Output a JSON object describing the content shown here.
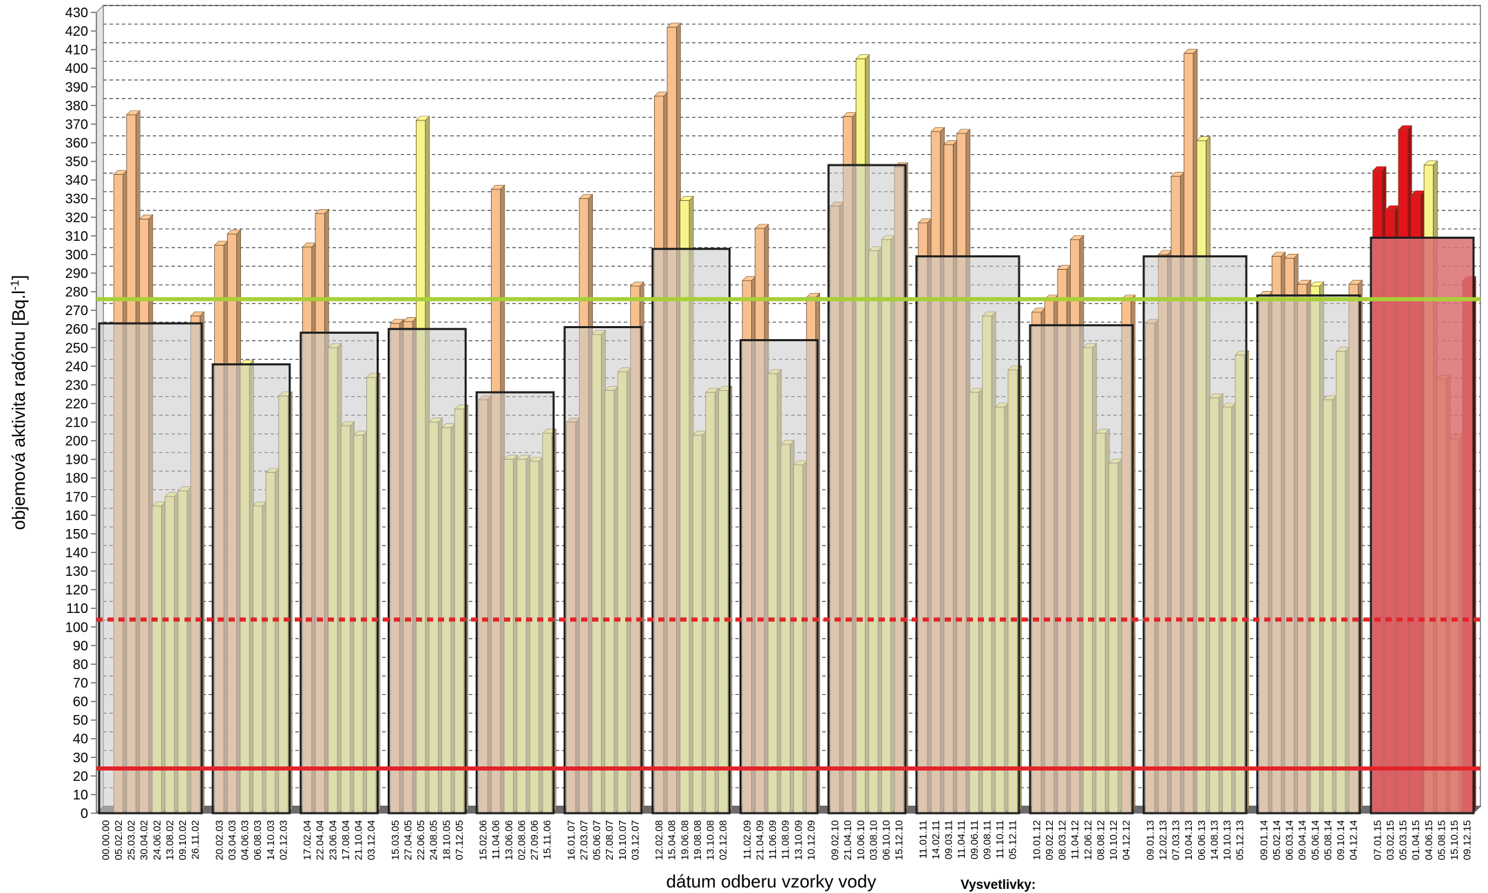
{
  "chart_data": {
    "type": "bar",
    "ylabel": "objemová aktivita radónu [Bq.l-1]",
    "ylabel_main": "objemová aktivita radónu [Bq.l",
    "ylabel_sup": "-1",
    "ylabel_end": "]",
    "xlabel": "dátum odberu vzorky vody",
    "legend_title": "Vysvetlivky:",
    "ylim": [
      0,
      430
    ],
    "ytick_step": 10,
    "grid": true,
    "reference_lines": [
      {
        "value": 276,
        "color": "#a9cf38",
        "style": "solid"
      },
      {
        "value": 104,
        "color": "#e2242a",
        "style": "dotted"
      },
      {
        "value": 24,
        "color": "#e2242a",
        "style": "solid"
      }
    ],
    "colors": {
      "orange": "#f7c08e",
      "yellow": "#f6f58c",
      "red": "#e2141b",
      "annual_fill": "#c9c9c9",
      "annual_fill_last": "#d96f72",
      "refline_green": "#a9cf38",
      "refline_red": "#e2242a"
    },
    "groups": [
      {
        "annual_mean": 263,
        "samples": [
          {
            "date": "00.00.00",
            "value": 0,
            "color": "orange"
          },
          {
            "date": "05.02.02",
            "value": 343,
            "color": "orange"
          },
          {
            "date": "25.03.02",
            "value": 375,
            "color": "orange"
          },
          {
            "date": "30.04.02",
            "value": 319,
            "color": "orange"
          },
          {
            "date": "24.06.02",
            "value": 165,
            "color": "yellow"
          },
          {
            "date": "13.08.02",
            "value": 170,
            "color": "yellow"
          },
          {
            "date": "09.10.02",
            "value": 173,
            "color": "yellow"
          },
          {
            "date": "26.11.02",
            "value": 267,
            "color": "orange"
          }
        ]
      },
      {
        "annual_mean": 241,
        "samples": [
          {
            "date": "20.02.03",
            "value": 305,
            "color": "orange"
          },
          {
            "date": "03.04.03",
            "value": 311,
            "color": "orange"
          },
          {
            "date": "04.06.03",
            "value": 241,
            "color": "yellow"
          },
          {
            "date": "06.08.03",
            "value": 165,
            "color": "yellow"
          },
          {
            "date": "14.10.03",
            "value": 183,
            "color": "yellow"
          },
          {
            "date": "02.12.03",
            "value": 224,
            "color": "yellow"
          }
        ]
      },
      {
        "annual_mean": 258,
        "samples": [
          {
            "date": "17.02.04",
            "value": 304,
            "color": "orange"
          },
          {
            "date": "22.04.04",
            "value": 322,
            "color": "orange"
          },
          {
            "date": "23.06.04",
            "value": 250,
            "color": "yellow"
          },
          {
            "date": "17.08.04",
            "value": 208,
            "color": "yellow"
          },
          {
            "date": "21.10.04",
            "value": 203,
            "color": "yellow"
          },
          {
            "date": "03.12.04",
            "value": 234,
            "color": "yellow"
          }
        ]
      },
      {
        "annual_mean": 260,
        "samples": [
          {
            "date": "15.03.05",
            "value": 263,
            "color": "orange"
          },
          {
            "date": "27.04.05",
            "value": 264,
            "color": "orange"
          },
          {
            "date": "22.06.05",
            "value": 372,
            "color": "yellow"
          },
          {
            "date": "24.08.05",
            "value": 210,
            "color": "yellow"
          },
          {
            "date": "18.10.05",
            "value": 207,
            "color": "yellow"
          },
          {
            "date": "07.12.05",
            "value": 217,
            "color": "yellow"
          }
        ]
      },
      {
        "annual_mean": 226,
        "samples": [
          {
            "date": "15.02.06",
            "value": 222,
            "color": "orange"
          },
          {
            "date": "11.04.06",
            "value": 335,
            "color": "orange"
          },
          {
            "date": "13.06.06",
            "value": 190,
            "color": "yellow"
          },
          {
            "date": "02.08.06",
            "value": 190,
            "color": "yellow"
          },
          {
            "date": "27.09.06",
            "value": 189,
            "color": "yellow"
          },
          {
            "date": "15.11.06",
            "value": 204,
            "color": "yellow"
          }
        ]
      },
      {
        "annual_mean": 261,
        "samples": [
          {
            "date": "16.01.07",
            "value": 210,
            "color": "orange"
          },
          {
            "date": "27.03.07",
            "value": 330,
            "color": "orange"
          },
          {
            "date": "05.06.07",
            "value": 257,
            "color": "yellow"
          },
          {
            "date": "27.08.07",
            "value": 227,
            "color": "yellow"
          },
          {
            "date": "10.10.07",
            "value": 237,
            "color": "yellow"
          },
          {
            "date": "03.12.07",
            "value": 283,
            "color": "orange"
          }
        ]
      },
      {
        "annual_mean": 303,
        "samples": [
          {
            "date": "12.02.08",
            "value": 385,
            "color": "orange"
          },
          {
            "date": "15.04.08",
            "value": 422,
            "color": "orange"
          },
          {
            "date": "19.06.08",
            "value": 329,
            "color": "yellow"
          },
          {
            "date": "19.08.08",
            "value": 203,
            "color": "yellow"
          },
          {
            "date": "13.10.08",
            "value": 226,
            "color": "yellow"
          },
          {
            "date": "02.12.08",
            "value": 227,
            "color": "yellow"
          }
        ]
      },
      {
        "annual_mean": 254,
        "samples": [
          {
            "date": "11.02.09",
            "value": 286,
            "color": "orange"
          },
          {
            "date": "21.04.09",
            "value": 314,
            "color": "orange"
          },
          {
            "date": "11.06.09",
            "value": 236,
            "color": "yellow"
          },
          {
            "date": "11.08.09",
            "value": 198,
            "color": "yellow"
          },
          {
            "date": "13.10.09",
            "value": 187,
            "color": "yellow"
          },
          {
            "date": "10.12.09",
            "value": 277,
            "color": "orange"
          }
        ]
      },
      {
        "annual_mean": 348,
        "samples": [
          {
            "date": "09.02.10",
            "value": 326,
            "color": "orange"
          },
          {
            "date": "21.04.10",
            "value": 374,
            "color": "orange"
          },
          {
            "date": "10.06.10",
            "value": 405,
            "color": "yellow"
          },
          {
            "date": "03.08.10",
            "value": 302,
            "color": "yellow"
          },
          {
            "date": "06.10.10",
            "value": 308,
            "color": "yellow"
          },
          {
            "date": "15.12.10",
            "value": 347,
            "color": "orange"
          }
        ]
      },
      {
        "annual_mean": 299,
        "samples": [
          {
            "date": "11.01.11",
            "value": 317,
            "color": "orange"
          },
          {
            "date": "14.02.11",
            "value": 366,
            "color": "orange"
          },
          {
            "date": "09.03.11",
            "value": 359,
            "color": "orange"
          },
          {
            "date": "11.04.11",
            "value": 365,
            "color": "orange"
          },
          {
            "date": "09.06.11",
            "value": 226,
            "color": "yellow"
          },
          {
            "date": "09.08.11",
            "value": 267,
            "color": "yellow"
          },
          {
            "date": "11.10.11",
            "value": 218,
            "color": "yellow"
          },
          {
            "date": "05.12.11",
            "value": 238,
            "color": "yellow"
          }
        ]
      },
      {
        "annual_mean": 262,
        "samples": [
          {
            "date": "10.01.12",
            "value": 269,
            "color": "orange"
          },
          {
            "date": "09.02.12",
            "value": 276,
            "color": "orange"
          },
          {
            "date": "08.03.12",
            "value": 292,
            "color": "orange"
          },
          {
            "date": "11.04.12",
            "value": 308,
            "color": "orange"
          },
          {
            "date": "12.06.12",
            "value": 250,
            "color": "yellow"
          },
          {
            "date": "08.08.12",
            "value": 204,
            "color": "yellow"
          },
          {
            "date": "10.10.12",
            "value": 188,
            "color": "yellow"
          },
          {
            "date": "04.12.12",
            "value": 276,
            "color": "orange"
          }
        ]
      },
      {
        "annual_mean": 299,
        "samples": [
          {
            "date": "09.01.13",
            "value": 263,
            "color": "orange"
          },
          {
            "date": "12.02.13",
            "value": 300,
            "color": "orange"
          },
          {
            "date": "07.03.13",
            "value": 342,
            "color": "orange"
          },
          {
            "date": "10.04.13",
            "value": 408,
            "color": "orange"
          },
          {
            "date": "06.06.13",
            "value": 361,
            "color": "yellow"
          },
          {
            "date": "14.08.13",
            "value": 223,
            "color": "yellow"
          },
          {
            "date": "10.10.13",
            "value": 218,
            "color": "yellow"
          },
          {
            "date": "05.12.13",
            "value": 246,
            "color": "yellow"
          }
        ]
      },
      {
        "annual_mean": 278,
        "samples": [
          {
            "date": "09.01.14",
            "value": 278,
            "color": "orange"
          },
          {
            "date": "05.02.14",
            "value": 299,
            "color": "orange"
          },
          {
            "date": "06.03.14",
            "value": 298,
            "color": "orange"
          },
          {
            "date": "09.04.14",
            "value": 284,
            "color": "orange"
          },
          {
            "date": "05.06.14",
            "value": 283,
            "color": "yellow"
          },
          {
            "date": "05.08.14",
            "value": 222,
            "color": "yellow"
          },
          {
            "date": "09.10.14",
            "value": 248,
            "color": "yellow"
          },
          {
            "date": "04.12.14",
            "value": 284,
            "color": "orange"
          }
        ]
      },
      {
        "annual_mean": 309,
        "last": true,
        "samples": [
          {
            "date": "07.01.15",
            "value": 345,
            "color": "red"
          },
          {
            "date": "03.02.15",
            "value": 324,
            "color": "red"
          },
          {
            "date": "05.03.15",
            "value": 367,
            "color": "red"
          },
          {
            "date": "01.04.15",
            "value": 332,
            "color": "red"
          },
          {
            "date": "04.06.15",
            "value": 348,
            "color": "yellow"
          },
          {
            "date": "05.08.15",
            "value": 233,
            "color": "yellow"
          },
          {
            "date": "15.10.15",
            "value": 201,
            "color": "yellow"
          },
          {
            "date": "09.12.15",
            "value": 286,
            "color": "red"
          }
        ]
      }
    ]
  }
}
